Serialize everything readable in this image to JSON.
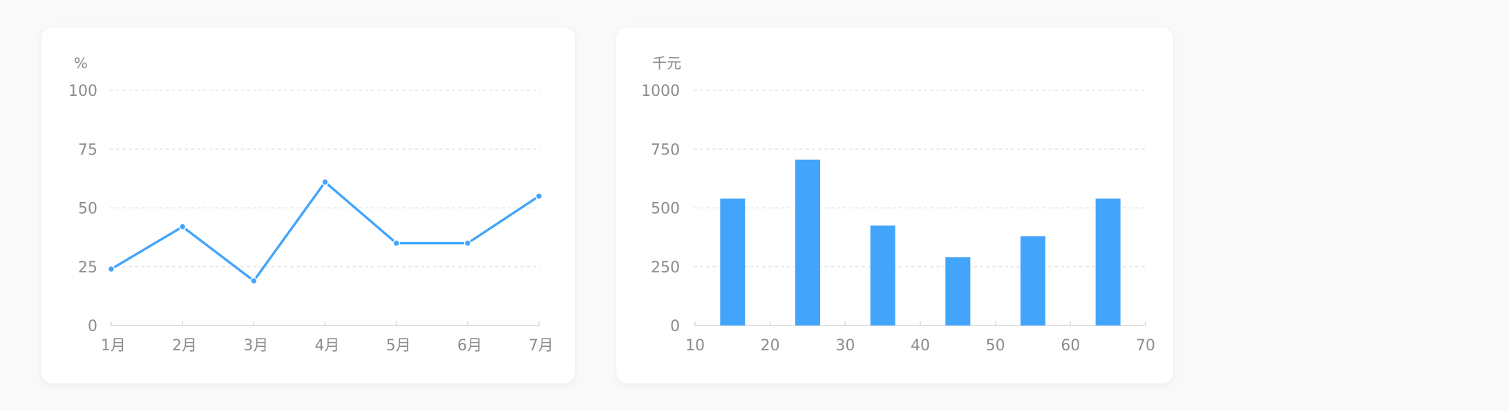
{
  "chart_data": [
    {
      "type": "line",
      "ylabel": "%",
      "categories": [
        "1月",
        "2月",
        "3月",
        "4月",
        "5月",
        "6月",
        "7月"
      ],
      "values": [
        24,
        42,
        19,
        61,
        35,
        35,
        55
      ],
      "ylim": [
        0,
        100
      ],
      "yticks": [
        "0",
        "25",
        "50",
        "75",
        "100"
      ],
      "grid": true,
      "color": "#42a5fb"
    },
    {
      "type": "bar",
      "ylabel": "千元",
      "x_ticks": [
        "10",
        "20",
        "30",
        "40",
        "50",
        "60",
        "70"
      ],
      "bars": [
        {
          "x": 15,
          "value": 540
        },
        {
          "x": 25,
          "value": 705
        },
        {
          "x": 35,
          "value": 425
        },
        {
          "x": 45,
          "value": 290
        },
        {
          "x": 55,
          "value": 380
        },
        {
          "x": 65,
          "value": 540
        }
      ],
      "xlim": [
        10,
        70
      ],
      "ylim": [
        0,
        1000
      ],
      "yticks": [
        "0",
        "250",
        "500",
        "750",
        "1000"
      ],
      "grid": true,
      "color": "#42a5fb"
    }
  ]
}
